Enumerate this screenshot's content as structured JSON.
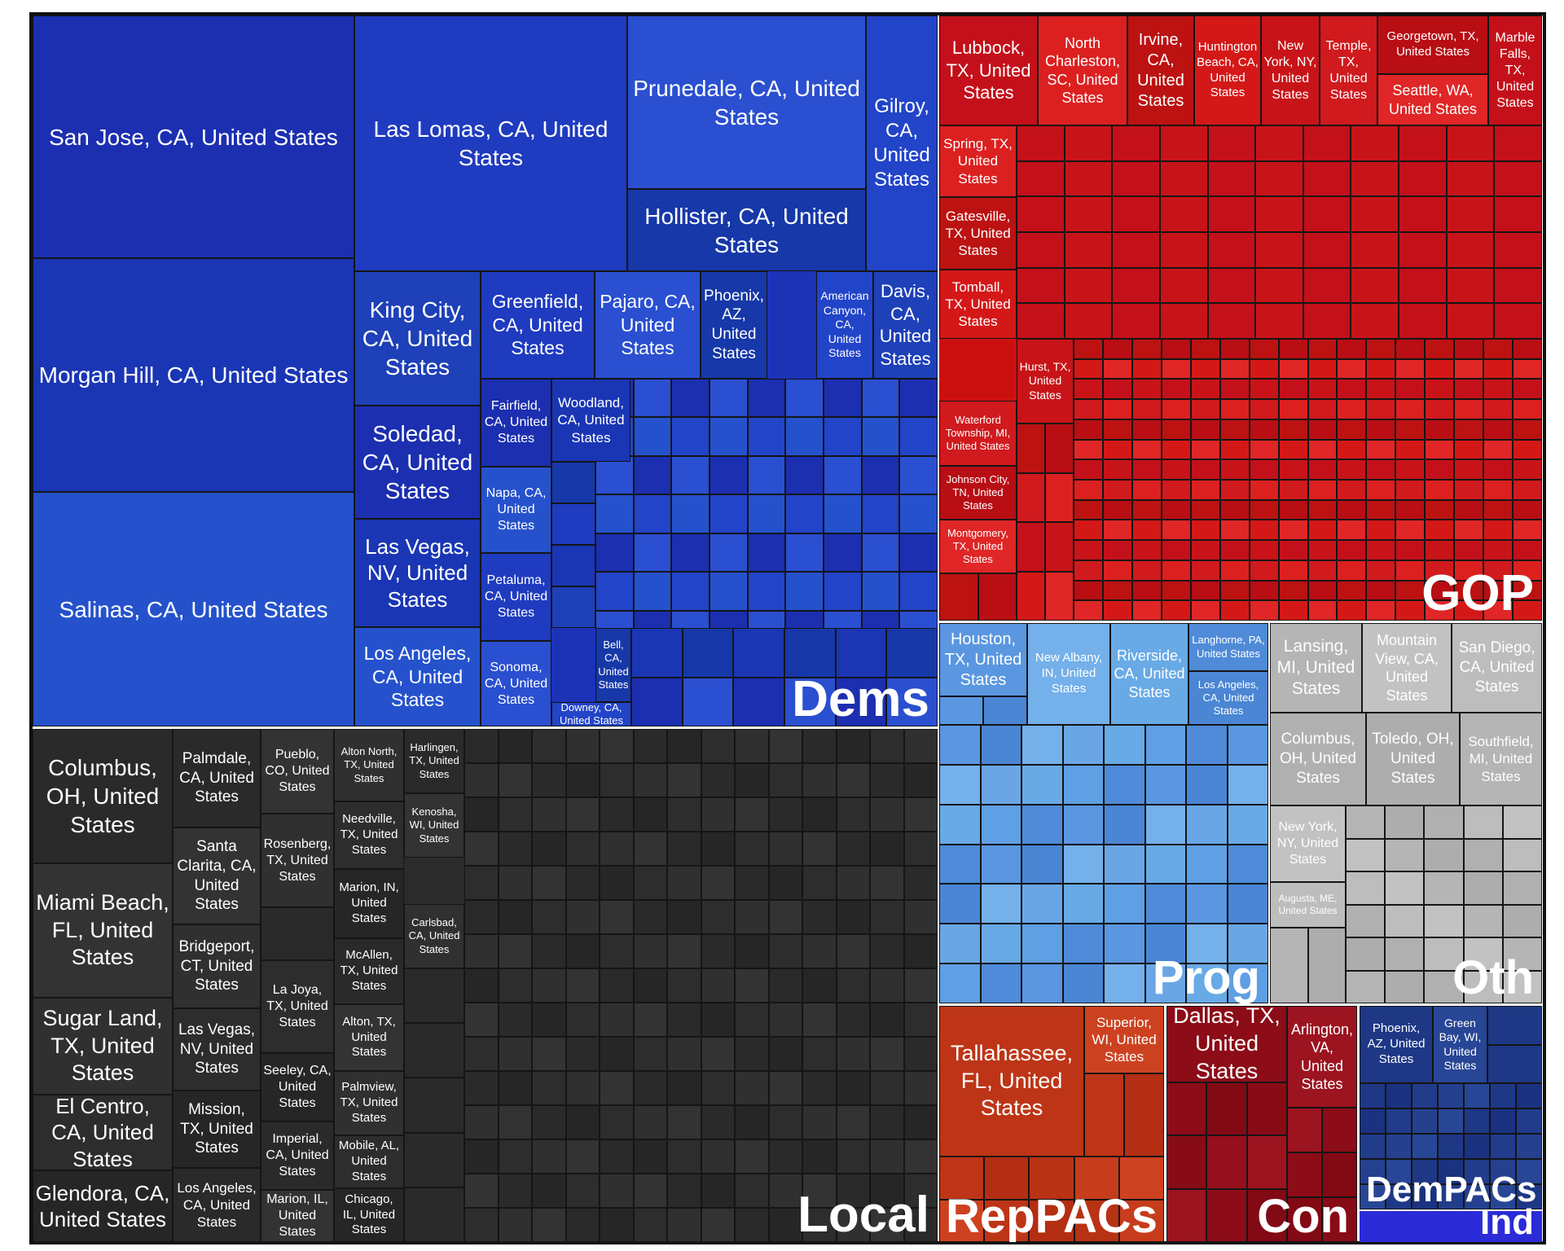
{
  "chart_data": {
    "type": "treemap",
    "groups": [
      {
        "id": "dems",
        "name": "Dems",
        "color": "#1c33b8",
        "palette": [
          "#1b2fb0",
          "#1f3bc0",
          "#2244c8",
          "#1a36b4",
          "#2a4fd0",
          "#1e40b8",
          "#2552cc",
          "#1638a8"
        ],
        "cells": [
          {
            "label": "San Jose, CA, United States"
          },
          {
            "label": "Morgan Hill, CA, United States"
          },
          {
            "label": "Salinas, CA, United States"
          },
          {
            "label": "Las Lomas, CA, United States"
          },
          {
            "label": "Prunedale, CA, United States"
          },
          {
            "label": "Hollister, CA, United States"
          },
          {
            "label": "Gilroy, CA, United States"
          },
          {
            "label": "King City, CA, United States"
          },
          {
            "label": "Soledad, CA, United States"
          },
          {
            "label": "Las Vegas, NV, United States"
          },
          {
            "label": "Los Angeles, CA, United States"
          },
          {
            "label": "Greenfield, CA, United States"
          },
          {
            "label": "Pajaro, CA, United States"
          },
          {
            "label": "Phoenix, AZ, United States"
          },
          {
            "label": "American Canyon, CA, United States"
          },
          {
            "label": "Davis, CA, United States"
          },
          {
            "label": "Fairfield, CA, United States"
          },
          {
            "label": "Woodland, CA, United States"
          },
          {
            "label": "Napa, CA, United States"
          },
          {
            "label": "Petaluma, CA, United States"
          },
          {
            "label": "Sonoma, CA, United States"
          },
          {
            "label": "Bell, CA, United States"
          },
          {
            "label": "Downey, CA, United States"
          }
        ]
      },
      {
        "id": "gop",
        "name": "GOP",
        "color": "#cc1010",
        "palette": [
          "#c4101a",
          "#d41818",
          "#b80e14",
          "#dc2020",
          "#c81418",
          "#e02626",
          "#bc1212",
          "#d01a1e"
        ],
        "cells": [
          {
            "label": "Lubbock, TX, United States"
          },
          {
            "label": "North Charleston, SC, United States"
          },
          {
            "label": "Irvine, CA, United States"
          },
          {
            "label": "Huntington Beach, CA, United States"
          },
          {
            "label": "New York, NY, United States"
          },
          {
            "label": "Temple, TX, United States"
          },
          {
            "label": "Georgetown, TX, United States"
          },
          {
            "label": "Seattle, WA, United States"
          },
          {
            "label": "Marble Falls, TX, United States"
          },
          {
            "label": "Spring, TX, United States"
          },
          {
            "label": "Gatesville, TX, United States"
          },
          {
            "label": "Tomball, TX, United States"
          },
          {
            "label": "Hurst, TX, United States"
          },
          {
            "label": "Waterford Township, MI, United States"
          },
          {
            "label": "Johnson City, TN, United States"
          },
          {
            "label": "Montgomery, TX, United States"
          }
        ]
      },
      {
        "id": "local",
        "name": "Local",
        "color": "#2b2b2b",
        "palette": [
          "#2a2a2a",
          "#303030",
          "#262626",
          "#333333",
          "#2d2d2d"
        ],
        "cells": [
          {
            "label": "Columbus, OH, United States"
          },
          {
            "label": "Miami Beach, FL, United States"
          },
          {
            "label": "Sugar Land, TX, United States"
          },
          {
            "label": "El Centro, CA, United States"
          },
          {
            "label": "Glendora, CA, United States"
          },
          {
            "label": "Palmdale, CA, United States"
          },
          {
            "label": "Santa Clarita, CA, United States"
          },
          {
            "label": "Bridgeport, CT, United States"
          },
          {
            "label": "Las Vegas, NV, United States"
          },
          {
            "label": "Mission, TX, United States"
          },
          {
            "label": "Los Angeles, CA, United States"
          },
          {
            "label": "Pueblo, CO, United States"
          },
          {
            "label": "Rosenberg, TX, United States"
          },
          {
            "label": "La Joya, TX, United States"
          },
          {
            "label": "Seeley, CA, United States"
          },
          {
            "label": "Imperial, CA, United States"
          },
          {
            "label": "Marion, IL, United States"
          },
          {
            "label": "Alton North, TX, United States"
          },
          {
            "label": "Needville, TX, United States"
          },
          {
            "label": "Marion, IN, United States"
          },
          {
            "label": "McAllen, TX, United States"
          },
          {
            "label": "Alton, TX, United States"
          },
          {
            "label": "Palmview, TX, United States"
          },
          {
            "label": "Mobile, AL, United States"
          },
          {
            "label": "Chicago, IL, United States"
          },
          {
            "label": "Harlingen, TX, United States"
          },
          {
            "label": "Kenosha, WI, United States"
          },
          {
            "label": "Carlsbad, CA, United States"
          }
        ]
      },
      {
        "id": "prog",
        "name": "Prog",
        "color": "#5c9be0",
        "palette": [
          "#5a97e0",
          "#6aa6e6",
          "#4f8bd8",
          "#74b0ea",
          "#5f9fe3",
          "#4a86d4",
          "#68aae6"
        ],
        "cells": [
          {
            "label": "Houston, TX, United States"
          },
          {
            "label": "New Albany, IN, United States"
          },
          {
            "label": "Riverside, CA, United States"
          },
          {
            "label": "Langhorne, PA, United States"
          },
          {
            "label": "Los Angeles, CA, United States"
          }
        ]
      },
      {
        "id": "oth",
        "name": "Oth",
        "color": "#b8b8b8",
        "palette": [
          "#b5b5b5",
          "#bdbdbd",
          "#adadad",
          "#c2c2c2",
          "#b0b0b0"
        ],
        "cells": [
          {
            "label": "Lansing, MI, United States"
          },
          {
            "label": "Mountain View, CA, United States"
          },
          {
            "label": "San Diego, CA, United States"
          },
          {
            "label": "Columbus, OH, United States"
          },
          {
            "label": "Toledo, OH, United States"
          },
          {
            "label": "Southfield, MI, United States"
          },
          {
            "label": "New York, NY, United States"
          },
          {
            "label": "Augusta, ME, United States"
          }
        ]
      },
      {
        "id": "reppacs",
        "name": "RepPACs",
        "color": "#c0361a",
        "palette": [
          "#bd3516",
          "#c63c1c",
          "#b32e12",
          "#cc4220",
          "#b83214"
        ],
        "cells": [
          {
            "label": "Tallahassee, FL, United States"
          },
          {
            "label": "Superior, WI, United States"
          }
        ]
      },
      {
        "id": "con",
        "name": "Con",
        "color": "#8e0e1a",
        "palette": [
          "#8c0c18",
          "#960f1c",
          "#820a14",
          "#9c1420",
          "#880c16"
        ],
        "cells": [
          {
            "label": "Dallas, TX, United States"
          },
          {
            "label": "Arlington, VA, United States"
          }
        ]
      },
      {
        "id": "dempacs",
        "name": "DemPACs",
        "color": "#1f3a8a",
        "palette": [
          "#1e3886",
          "#24408f",
          "#1a3280",
          "#284696",
          "#203c8a"
        ],
        "cells": [
          {
            "label": "Phoenix, AZ, United States"
          },
          {
            "label": "Green Bay, WI, United States"
          }
        ]
      },
      {
        "id": "ind",
        "name": "Ind",
        "color": "#2b2bd8",
        "palette": [
          "#2b2bd8"
        ],
        "cells": []
      }
    ]
  }
}
